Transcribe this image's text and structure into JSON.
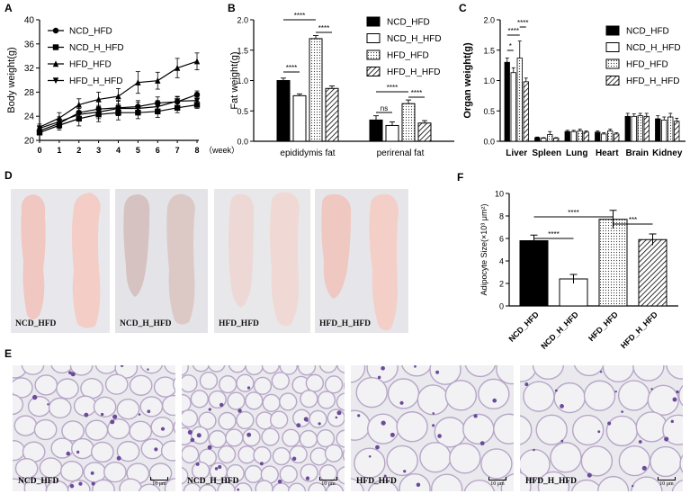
{
  "panel_letters": {
    "A": "A",
    "B": "B",
    "C": "C",
    "D": "D",
    "E": "E",
    "F": "F"
  },
  "legend_labels": [
    "NCD_HFD",
    "NCD_H_HFD",
    "HFD_HFD",
    "HFD_H_HFD"
  ],
  "chart_data": [
    {
      "id": "A",
      "type": "line",
      "title": "",
      "xlabel": "",
      "x_unit_label": "（week）",
      "ylabel": "Body weight(g)",
      "x": [
        0,
        1,
        2,
        3,
        4,
        5,
        6,
        7,
        8
      ],
      "xlim": [
        0,
        8
      ],
      "ylim": [
        20,
        40
      ],
      "yticks": [
        20,
        24,
        28,
        32,
        36,
        40
      ],
      "series": [
        {
          "name": "NCD_HFD",
          "marker": "circle",
          "values": [
            21.6,
            22.8,
            24.6,
            25.2,
            25.4,
            25.6,
            26.2,
            26.4,
            27.6
          ],
          "err": [
            0.4,
            0.8,
            1.0,
            1.2,
            1.2,
            1.0,
            1.0,
            0.8,
            0.6
          ]
        },
        {
          "name": "NCD_H_HFD",
          "marker": "square",
          "values": [
            21.3,
            22.5,
            23.6,
            24.3,
            24.6,
            24.6,
            24.8,
            25.4,
            25.9
          ],
          "err": [
            0.4,
            0.8,
            1.2,
            1.2,
            1.2,
            1.0,
            1.0,
            0.8,
            0.6
          ]
        },
        {
          "name": "HFD_HFD",
          "marker": "triangle-up",
          "values": [
            22.2,
            23.7,
            25.9,
            26.8,
            27.3,
            29.6,
            29.9,
            32.0,
            33.1
          ],
          "err": [
            0.5,
            0.9,
            1.0,
            1.2,
            1.3,
            1.8,
            1.4,
            1.6,
            1.4
          ]
        },
        {
          "name": "HFD_H_HFD",
          "marker": "triangle-down",
          "values": [
            22.0,
            23.1,
            24.3,
            24.7,
            25.3,
            25.3,
            25.6,
            26.5,
            26.6
          ],
          "err": [
            0.4,
            0.8,
            1.0,
            1.1,
            1.2,
            1.0,
            1.0,
            0.8,
            0.6
          ]
        }
      ]
    },
    {
      "id": "B",
      "type": "bar",
      "ylabel": "Fat weight(g)",
      "ylim": [
        0,
        2
      ],
      "yticks": [
        "0.0",
        "0.5",
        "1.0",
        "1.5",
        "2.0"
      ],
      "categories": [
        "epididymis fat",
        "perirenal fat"
      ],
      "series": [
        {
          "name": "NCD_HFD",
          "values": [
            1.0,
            0.35
          ],
          "err": [
            0.04,
            0.07
          ]
        },
        {
          "name": "NCD_H_HFD",
          "values": [
            0.75,
            0.26
          ],
          "err": [
            0.03,
            0.06
          ]
        },
        {
          "name": "HFD_HFD",
          "values": [
            1.69,
            0.62
          ],
          "err": [
            0.05,
            0.06
          ]
        },
        {
          "name": "HFD_H_HFD",
          "values": [
            0.87,
            0.3
          ],
          "err": [
            0.04,
            0.04
          ]
        }
      ],
      "annotations": [
        "****",
        "****",
        "****",
        "****",
        "ns",
        "****"
      ]
    },
    {
      "id": "C",
      "type": "bar",
      "ylabel": "Organ weight(g)",
      "ylim": [
        0,
        2
      ],
      "yticks": [
        "0.0",
        "0.5",
        "1.0",
        "1.5",
        "2.0"
      ],
      "categories": [
        "Liver",
        "Spleen",
        "Lung",
        "Heart",
        "Brain",
        "Kidney"
      ],
      "series": [
        {
          "name": "NCD_HFD",
          "values": [
            1.3,
            0.06,
            0.16,
            0.15,
            0.41,
            0.37
          ],
          "err": [
            0.07,
            0.01,
            0.02,
            0.02,
            0.05,
            0.05
          ]
        },
        {
          "name": "NCD_H_HFD",
          "values": [
            1.13,
            0.05,
            0.16,
            0.12,
            0.41,
            0.35
          ],
          "err": [
            0.08,
            0.01,
            0.02,
            0.02,
            0.04,
            0.05
          ]
        },
        {
          "name": "HFD_HFD",
          "values": [
            1.37,
            0.11,
            0.17,
            0.17,
            0.42,
            0.4
          ],
          "err": [
            0.28,
            0.05,
            0.03,
            0.03,
            0.04,
            0.06
          ]
        },
        {
          "name": "HFD_H_HFD",
          "values": [
            0.98,
            0.05,
            0.15,
            0.12,
            0.41,
            0.33
          ],
          "err": [
            0.06,
            0.01,
            0.02,
            0.02,
            0.05,
            0.05
          ]
        }
      ],
      "annotations": [
        "****",
        "*",
        "****"
      ]
    },
    {
      "id": "F",
      "type": "bar",
      "ylabel": "Adipocyte Size(×10³ μm²)",
      "ylim": [
        0,
        10
      ],
      "yticks": [
        "0",
        "2",
        "4",
        "6",
        "8",
        "10"
      ],
      "categories": [
        "NCD_HFD",
        "NCD_H_HFD",
        "HFD_HFD",
        "HFD_H_HFD"
      ],
      "values": [
        5.8,
        2.4,
        7.7,
        5.9
      ],
      "err": [
        0.5,
        0.4,
        0.8,
        0.5
      ],
      "annotations": [
        "****",
        "****",
        "***"
      ]
    }
  ],
  "photos": [
    {
      "caption": "NCD_HFD"
    },
    {
      "caption": "NCD_H_HFD"
    },
    {
      "caption": "HFD_HFD"
    },
    {
      "caption": "HFD_H_HFD"
    }
  ],
  "histology": [
    {
      "caption": "NCD_HFD",
      "scale": "10 μm"
    },
    {
      "caption": "NCD_H_HFD",
      "scale": "10 μm"
    },
    {
      "caption": "HFD_HFD",
      "scale": "10 μm"
    },
    {
      "caption": "HFD_H_HFD",
      "scale": "10 μm"
    }
  ]
}
